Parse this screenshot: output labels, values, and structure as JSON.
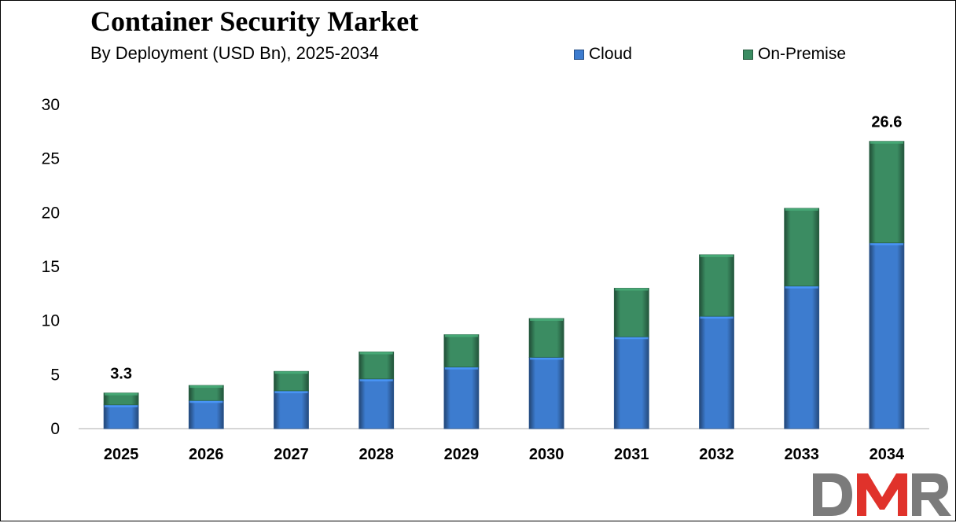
{
  "chart_data": {
    "type": "bar",
    "stacked": true,
    "title": "Container Security Market",
    "subtitle": "By Deployment (USD Bn), 2025-2034",
    "categories": [
      "2025",
      "2026",
      "2027",
      "2028",
      "2029",
      "2030",
      "2031",
      "2032",
      "2033",
      "2034"
    ],
    "series": [
      {
        "name": "Cloud",
        "color": "#3d7ccf",
        "values": [
          2.2,
          2.6,
          3.5,
          4.6,
          5.7,
          6.6,
          8.5,
          10.4,
          13.2,
          17.2
        ]
      },
      {
        "name": "On-Premise",
        "color": "#3b8c62",
        "values": [
          1.1,
          1.4,
          1.8,
          2.5,
          3.0,
          3.6,
          4.5,
          5.7,
          7.2,
          9.4
        ]
      }
    ],
    "ylim": [
      0,
      30
    ],
    "yticks": [
      0,
      5,
      10,
      15,
      20,
      25,
      30
    ],
    "grid": false,
    "legend_position": "top-right",
    "data_labels": [
      {
        "category": "2025",
        "text": "3.3"
      },
      {
        "category": "2034",
        "text": "26.6"
      }
    ]
  },
  "logo": {
    "text": "DMR",
    "colors": [
      "#7b7b7b",
      "#e0322b"
    ]
  }
}
